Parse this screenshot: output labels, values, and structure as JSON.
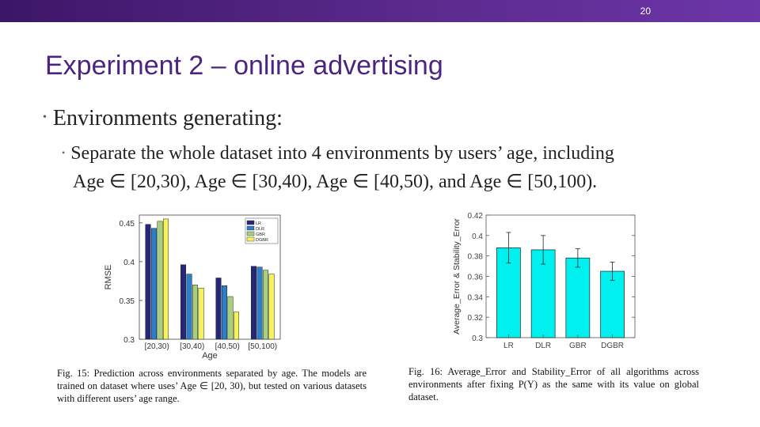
{
  "slide": {
    "number": "20",
    "title": "Experiment 2 – online advertising",
    "bullet1": "Environments generating:",
    "bullet2_line1": "Separate the whole dataset into 4 environments by users’ age, including",
    "bullet2_line2": "Age ∈ [20,30), Age ∈ [30,40), Age ∈ [40,50), and Age ∈ [50,100)."
  },
  "captions": {
    "fig15": "Fig. 15: Prediction across environments separated by age. The models are trained on dataset where uses’ Age ∈ [20, 30), but tested on various datasets with different users’ age range.",
    "fig16": "Fig. 16: Average_Error and Stability_Error of all algorithms across environments after fixing P(Y) as the same with its value on global dataset."
  },
  "colors": {
    "title": "#4b2580",
    "bar_cyan": "#00f0f0"
  },
  "chart_data": [
    {
      "type": "bar",
      "categories": [
        "[20,30)",
        "[30,40)",
        "[40,50)",
        "[50,100)"
      ],
      "series": [
        {
          "name": "LR",
          "color": "#27277a",
          "values": [
            0.448,
            0.396,
            0.379,
            0.394
          ]
        },
        {
          "name": "DLR",
          "color": "#2c7ec8",
          "values": [
            0.443,
            0.384,
            0.369,
            0.393
          ]
        },
        {
          "name": "GBR",
          "color": "#a8cf7c",
          "values": [
            0.452,
            0.37,
            0.355,
            0.389
          ]
        },
        {
          "name": "DGBR",
          "color": "#f5f25a",
          "values": [
            0.455,
            0.366,
            0.335,
            0.384
          ]
        }
      ],
      "xlabel": "Age",
      "ylabel": "RMSE",
      "ylim": [
        0.3,
        0.46
      ],
      "yticks": [
        "0.3",
        "0.35",
        "0.4",
        "0.45"
      ],
      "legend": "top-right"
    },
    {
      "type": "bar",
      "categories": [
        "LR",
        "DLR",
        "GBR",
        "DGBR"
      ],
      "values": [
        0.388,
        0.386,
        0.378,
        0.365
      ],
      "errors": [
        0.015,
        0.014,
        0.009,
        0.009
      ],
      "xlabel": "",
      "ylabel": "Average_Error & Stability_Error",
      "ylim": [
        0.3,
        0.42
      ],
      "yticks": [
        "0.3",
        "0.32",
        "0.34",
        "0.36",
        "0.38",
        "0.4",
        "0.42"
      ]
    }
  ]
}
